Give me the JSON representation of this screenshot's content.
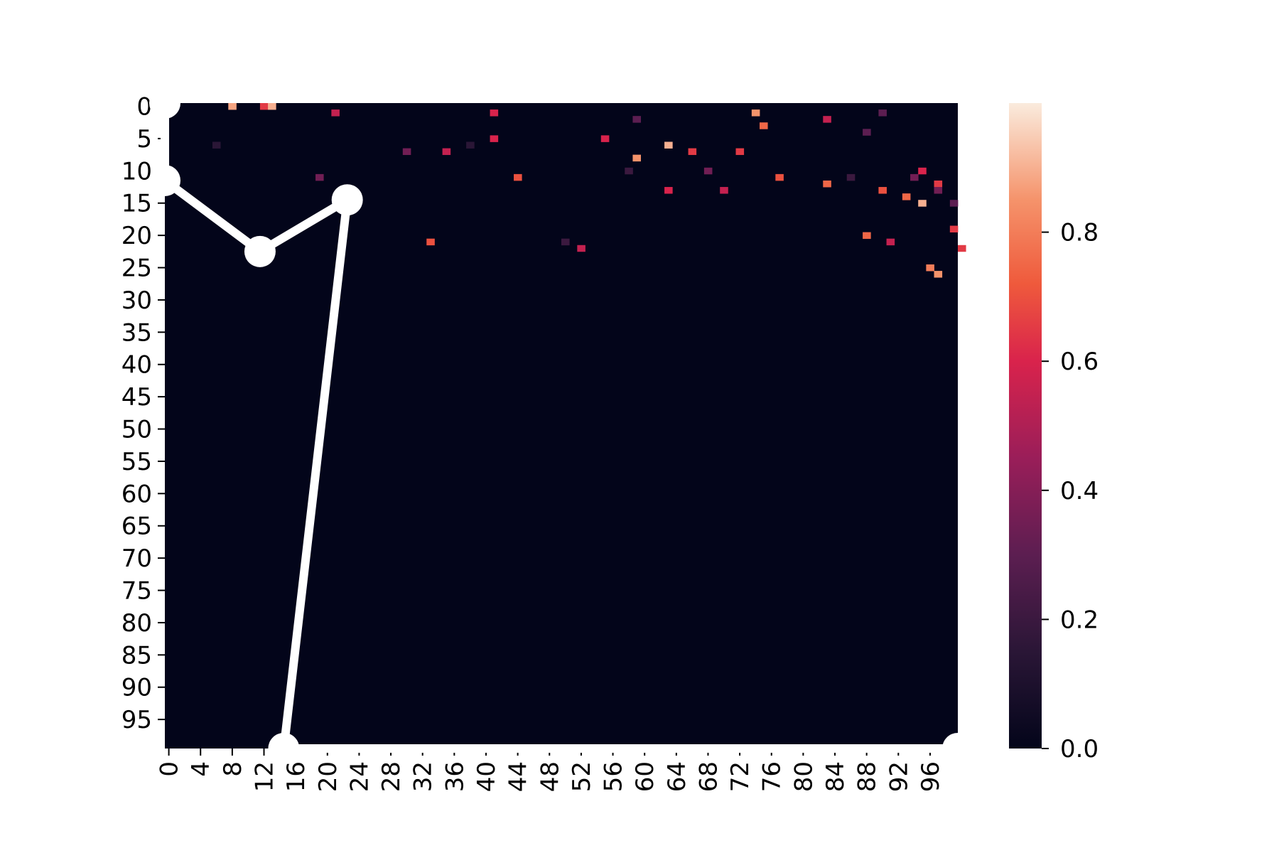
{
  "chart_data": {
    "type": "heatmap",
    "title": "",
    "xlabel": "",
    "ylabel": "",
    "rows": 100,
    "cols": 100,
    "x_tick_labels": [
      "0",
      "4",
      "8",
      "12",
      "16",
      "20",
      "24",
      "28",
      "32",
      "36",
      "40",
      "44",
      "48",
      "52",
      "56",
      "60",
      "64",
      "68",
      "72",
      "76",
      "80",
      "84",
      "88",
      "92",
      "96"
    ],
    "y_tick_labels": [
      "0",
      "5",
      "10",
      "15",
      "20",
      "25",
      "30",
      "35",
      "40",
      "45",
      "50",
      "55",
      "60",
      "65",
      "70",
      "75",
      "80",
      "85",
      "90",
      "95"
    ],
    "colorbar": {
      "range": [
        0.0,
        1.0
      ],
      "tick_labels": [
        "0.0",
        "0.2",
        "0.4",
        "0.6",
        "0.8"
      ],
      "colormap": "rocket"
    },
    "background_value": 0.0,
    "cells": [
      {
        "x": 8,
        "y": 0,
        "v": 0.88
      },
      {
        "x": 12,
        "y": 0,
        "v": 0.65
      },
      {
        "x": 13,
        "y": 0,
        "v": 0.9
      },
      {
        "x": 21,
        "y": 1,
        "v": 0.55
      },
      {
        "x": 41,
        "y": 1,
        "v": 0.6
      },
      {
        "x": 74,
        "y": 1,
        "v": 0.85
      },
      {
        "x": 90,
        "y": 1,
        "v": 0.3
      },
      {
        "x": 83,
        "y": 2,
        "v": 0.55
      },
      {
        "x": 59,
        "y": 2,
        "v": 0.3
      },
      {
        "x": 75,
        "y": 3,
        "v": 0.75
      },
      {
        "x": 88,
        "y": 4,
        "v": 0.3
      },
      {
        "x": 41,
        "y": 5,
        "v": 0.6
      },
      {
        "x": 55,
        "y": 5,
        "v": 0.6
      },
      {
        "x": 38,
        "y": 6,
        "v": 0.15
      },
      {
        "x": 63,
        "y": 6,
        "v": 0.9
      },
      {
        "x": 6,
        "y": 6,
        "v": 0.15
      },
      {
        "x": 72,
        "y": 7,
        "v": 0.65
      },
      {
        "x": 30,
        "y": 7,
        "v": 0.35
      },
      {
        "x": 35,
        "y": 7,
        "v": 0.55
      },
      {
        "x": 66,
        "y": 7,
        "v": 0.65
      },
      {
        "x": 59,
        "y": 8,
        "v": 0.85
      },
      {
        "x": 58,
        "y": 10,
        "v": 0.2
      },
      {
        "x": 68,
        "y": 10,
        "v": 0.35
      },
      {
        "x": 19,
        "y": 11,
        "v": 0.35
      },
      {
        "x": 44,
        "y": 11,
        "v": 0.7
      },
      {
        "x": 77,
        "y": 11,
        "v": 0.7
      },
      {
        "x": 83,
        "y": 12,
        "v": 0.75
      },
      {
        "x": 63,
        "y": 13,
        "v": 0.6
      },
      {
        "x": 70,
        "y": 13,
        "v": 0.55
      },
      {
        "x": 90,
        "y": 13,
        "v": 0.7
      },
      {
        "x": 93,
        "y": 14,
        "v": 0.75
      },
      {
        "x": 95,
        "y": 15,
        "v": 0.9
      },
      {
        "x": 86,
        "y": 11,
        "v": 0.2
      },
      {
        "x": 94,
        "y": 11,
        "v": 0.35
      },
      {
        "x": 95,
        "y": 10,
        "v": 0.6
      },
      {
        "x": 97,
        "y": 12,
        "v": 0.65
      },
      {
        "x": 97,
        "y": 13,
        "v": 0.35
      },
      {
        "x": 99,
        "y": 15,
        "v": 0.3
      },
      {
        "x": 99,
        "y": 19,
        "v": 0.65
      },
      {
        "x": 33,
        "y": 21,
        "v": 0.7
      },
      {
        "x": 50,
        "y": 21,
        "v": 0.2
      },
      {
        "x": 52,
        "y": 22,
        "v": 0.55
      },
      {
        "x": 88,
        "y": 20,
        "v": 0.75
      },
      {
        "x": 91,
        "y": 21,
        "v": 0.55
      },
      {
        "x": 96,
        "y": 25,
        "v": 0.8
      },
      {
        "x": 97,
        "y": 26,
        "v": 0.85
      },
      {
        "x": 100,
        "y": 22,
        "v": 0.65
      }
    ],
    "overlay_line": {
      "color": "#ffffff",
      "marker": "circle",
      "points": [
        {
          "x": 0,
          "y": 0
        },
        {
          "x": 0,
          "y": 12
        },
        {
          "x": 12,
          "y": 23
        },
        {
          "x": 23,
          "y": 15
        },
        {
          "x": 15,
          "y": 100
        },
        {
          "x": 100,
          "y": 100
        }
      ]
    }
  }
}
